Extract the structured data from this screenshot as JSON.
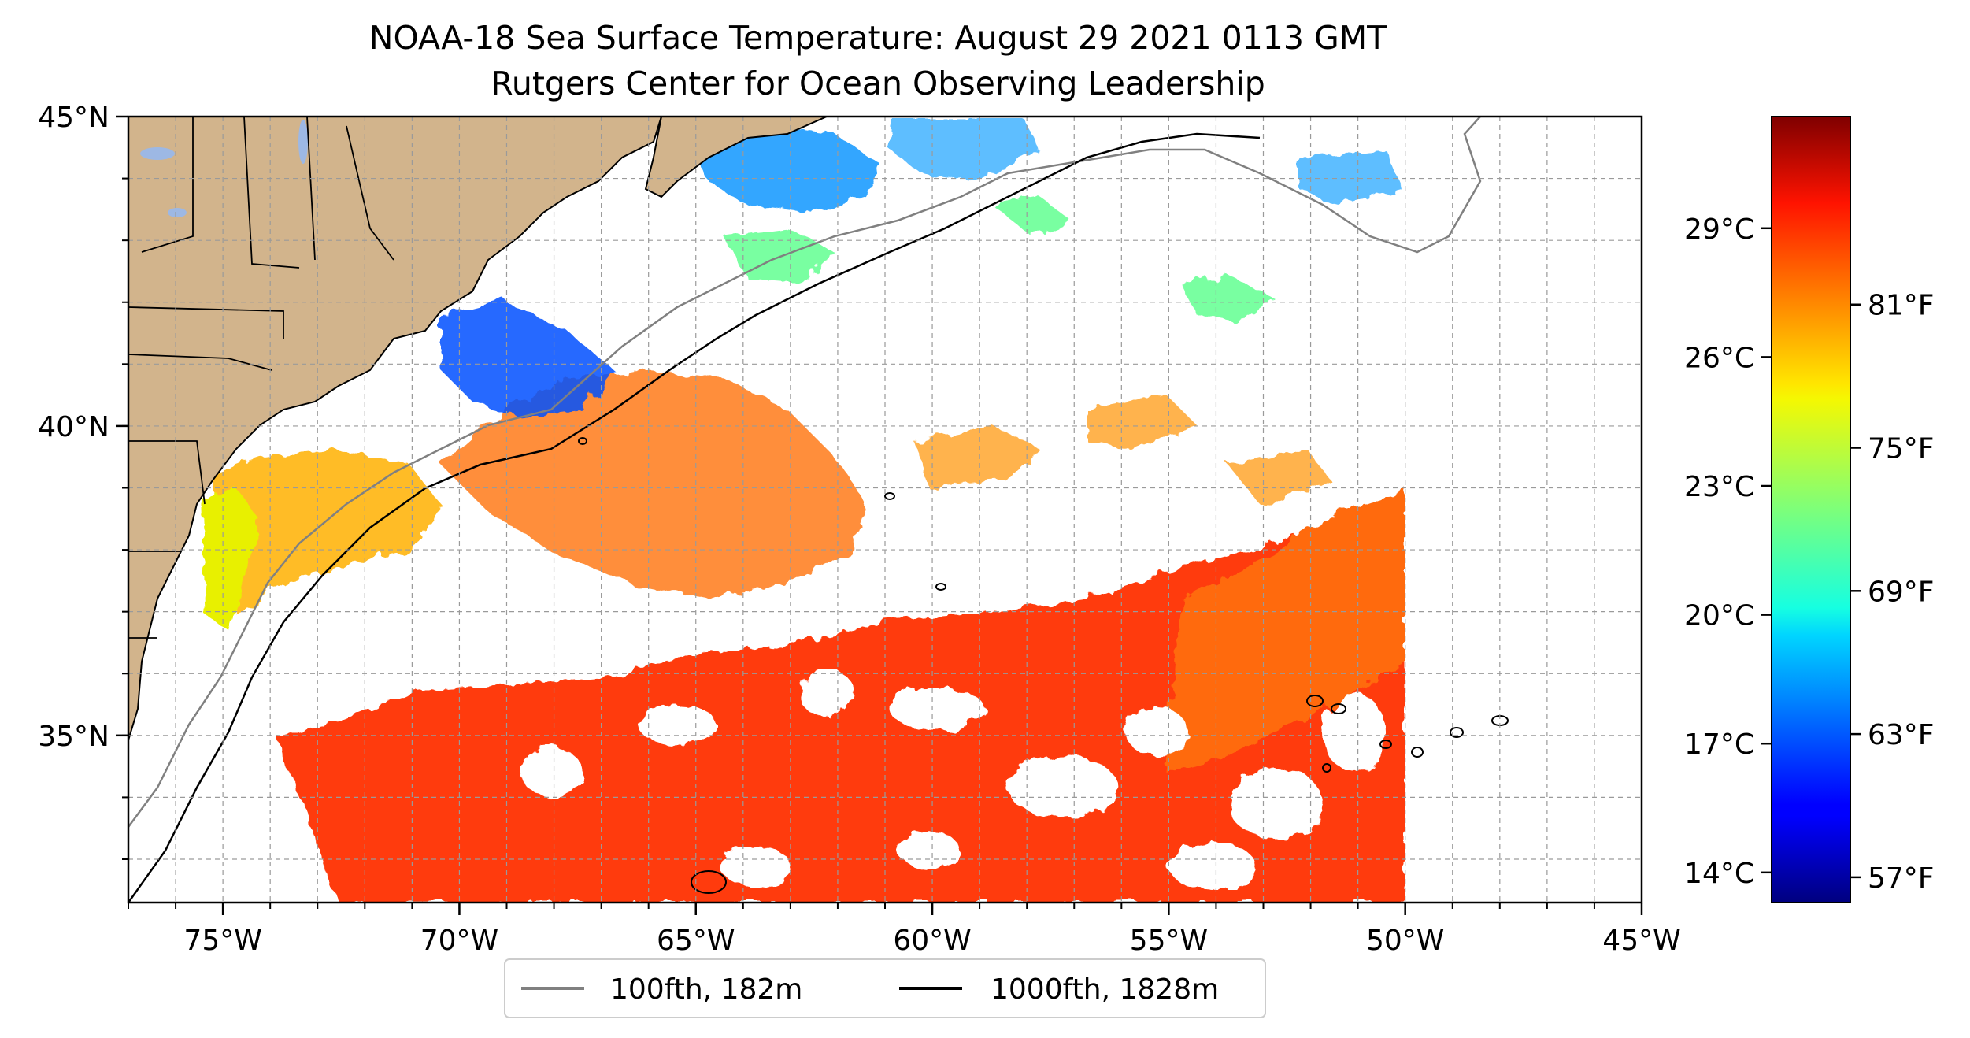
{
  "title": {
    "line1": "NOAA-18 Sea Surface Temperature: August 29 2021 0113 GMT",
    "line2": "Rutgers Center for Ocean Observing Leadership"
  },
  "map": {
    "lon_range": [
      -77,
      -45
    ],
    "lat_range": [
      32.3,
      45
    ],
    "lon_ticks": [
      {
        "value": -75,
        "label": "75°W"
      },
      {
        "value": -70,
        "label": "70°W"
      },
      {
        "value": -65,
        "label": "65°W"
      },
      {
        "value": -60,
        "label": "60°W"
      },
      {
        "value": -55,
        "label": "55°W"
      },
      {
        "value": -50,
        "label": "50°W"
      },
      {
        "value": -45,
        "label": "45°W"
      }
    ],
    "lat_ticks": [
      {
        "value": 35,
        "label": "35°N"
      },
      {
        "value": 40,
        "label": "40°N"
      },
      {
        "value": 45,
        "label": "45°N"
      }
    ],
    "grid": true,
    "grid_spacing_deg": 1,
    "land_color": "#d2b48c",
    "lake_color": "#9db8e4"
  },
  "colorbar": {
    "colormap": "jet",
    "range_c": [
      13.3,
      31.6
    ],
    "celsius_ticks": [
      "14°C",
      "17°C",
      "20°C",
      "23°C",
      "26°C",
      "29°C"
    ],
    "fahrenheit_ticks": [
      "57°F",
      "63°F",
      "69°F",
      "75°F",
      "81°F"
    ]
  },
  "legend": {
    "placement": "bottom-center",
    "items": [
      {
        "label": "100fth, 182m",
        "color": "#808080"
      },
      {
        "label": "1000fth, 1828m",
        "color": "#000000"
      }
    ]
  }
}
